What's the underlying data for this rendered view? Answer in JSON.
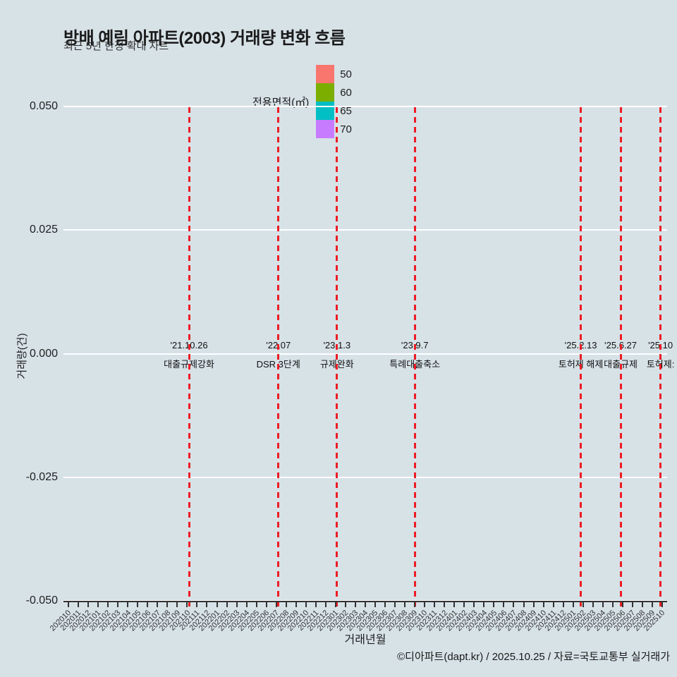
{
  "header": {
    "title": "방배 예림 아파트(2003) 거래량 변화 흐름",
    "subtitle": "최근 5년 한정 확대 차트"
  },
  "legend": {
    "title": "전용면적(㎡)",
    "items": [
      {
        "label": "50",
        "color": "#F8766D"
      },
      {
        "label": "60",
        "color": "#7CAE00"
      },
      {
        "label": "65",
        "color": "#00BFC4"
      },
      {
        "label": "70",
        "color": "#C77CFF"
      }
    ]
  },
  "chart_data": {
    "type": "line",
    "title": "방배 예림 아파트(2003) 거래량 변화 흐름",
    "subtitle": "최근 5년 한정 확대 차트",
    "xlabel": "거래년월",
    "ylabel": "거래량(건)",
    "ylim": [
      -0.05,
      0.05
    ],
    "ytick_labels": [
      "0.050",
      "0.025",
      "0.000",
      "-0.025",
      "-0.050"
    ],
    "grid": "horizontal white major gridlines on",
    "legend_position": "top",
    "series": [],
    "x_categories": [
      "202010",
      "202011",
      "202012",
      "202101",
      "202102",
      "202103",
      "202104",
      "202105",
      "202106",
      "202107",
      "202108",
      "202109",
      "202110",
      "202111",
      "202112",
      "202201",
      "202202",
      "202203",
      "202204",
      "202205",
      "202206",
      "202207",
      "202208",
      "202209",
      "202210",
      "202211",
      "202212",
      "202301",
      "202302",
      "202303",
      "202304",
      "202305",
      "202306",
      "202307",
      "202308",
      "202309",
      "202310",
      "202311",
      "202312",
      "202401",
      "202402",
      "202403",
      "202404",
      "202405",
      "202406",
      "202407",
      "202408",
      "202409",
      "202410",
      "202411",
      "202412",
      "202501",
      "202502",
      "202503",
      "202504",
      "202505",
      "202506",
      "202507",
      "202508",
      "202509",
      "202510"
    ],
    "event_lines": [
      {
        "date": "'21.10.26",
        "label": "대출규제강화",
        "pos": 0.208
      },
      {
        "date": "'22.07",
        "label": "DSR 3단계",
        "pos": 0.356
      },
      {
        "date": "'23.1.3",
        "label": "규제완화",
        "pos": 0.453
      },
      {
        "date": "'23.9.7",
        "label": "특례대출축소",
        "pos": 0.582
      },
      {
        "date": "'25.2.13",
        "label": "토허제 해제",
        "pos": 0.857
      },
      {
        "date": "'25.6.27",
        "label": "대출규제",
        "pos": 0.923
      },
      {
        "date": "'25.10",
        "label": "토허제:",
        "pos": 0.989
      }
    ],
    "event_line_color": "#ED1C24",
    "background_color": "#D7E2E7"
  },
  "footer": {
    "credit": "©디아파트(dapt.kr) / 2025.10.25 / 자료=국토교통부 실거래가"
  }
}
